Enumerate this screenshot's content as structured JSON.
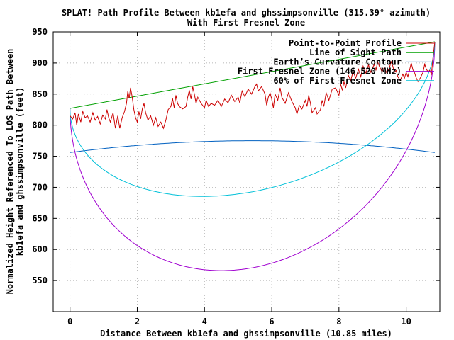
{
  "chart_data": {
    "type": "line",
    "title": [
      "SPLAT! Path Profile Between kb1efa and ghssimpsonville (315.39° azimuth)",
      "With First Fresnel Zone"
    ],
    "xlabel": "Distance Between kb1efa and ghssimpsonville (10.85 miles)",
    "ylabel": [
      "Normalized Height Referenced To LOS Path Between",
      "kb1efa and ghssimpsonville (feet)"
    ],
    "xlim": [
      -0.5,
      11.0
    ],
    "ylim": [
      500,
      950
    ],
    "x_ticks": [
      0,
      2,
      4,
      6,
      8,
      10
    ],
    "x_tick_labels": [
      "0",
      "2",
      "4",
      "6",
      "8",
      "10"
    ],
    "y_ticks": [
      550,
      600,
      650,
      700,
      750,
      800,
      850,
      900,
      950
    ],
    "y_tick_labels": [
      "550",
      "600",
      "650",
      "700",
      "750",
      "800",
      "850",
      "900",
      "950"
    ],
    "legend_position": "top-right",
    "series": [
      {
        "name": "Point-to-Point Profile",
        "color": "#cc0000",
        "points": [
          [
            0.0,
            815
          ],
          [
            0.08,
            810
          ],
          [
            0.15,
            820
          ],
          [
            0.2,
            800
          ],
          [
            0.25,
            818
          ],
          [
            0.32,
            805
          ],
          [
            0.38,
            822
          ],
          [
            0.45,
            812
          ],
          [
            0.52,
            815
          ],
          [
            0.6,
            805
          ],
          [
            0.68,
            820
          ],
          [
            0.75,
            808
          ],
          [
            0.82,
            814
          ],
          [
            0.9,
            802
          ],
          [
            0.97,
            816
          ],
          [
            1.05,
            810
          ],
          [
            1.1,
            825
          ],
          [
            1.15,
            812
          ],
          [
            1.2,
            805
          ],
          [
            1.28,
            820
          ],
          [
            1.35,
            795
          ],
          [
            1.42,
            815
          ],
          [
            1.48,
            795
          ],
          [
            1.55,
            812
          ],
          [
            1.62,
            822
          ],
          [
            1.68,
            835
          ],
          [
            1.72,
            855
          ],
          [
            1.76,
            843
          ],
          [
            1.8,
            860
          ],
          [
            1.85,
            845
          ],
          [
            1.9,
            825
          ],
          [
            1.95,
            812
          ],
          [
            2.0,
            805
          ],
          [
            2.05,
            822
          ],
          [
            2.1,
            810
          ],
          [
            2.15,
            826
          ],
          [
            2.2,
            835
          ],
          [
            2.25,
            820
          ],
          [
            2.32,
            808
          ],
          [
            2.4,
            815
          ],
          [
            2.48,
            800
          ],
          [
            2.55,
            812
          ],
          [
            2.62,
            798
          ],
          [
            2.7,
            805
          ],
          [
            2.78,
            795
          ],
          [
            2.85,
            808
          ],
          [
            2.92,
            825
          ],
          [
            3.0,
            830
          ],
          [
            3.05,
            843
          ],
          [
            3.1,
            828
          ],
          [
            3.15,
            848
          ],
          [
            3.2,
            835
          ],
          [
            3.25,
            830
          ],
          [
            3.35,
            826
          ],
          [
            3.45,
            830
          ],
          [
            3.5,
            845
          ],
          [
            3.55,
            856
          ],
          [
            3.6,
            842
          ],
          [
            3.65,
            862
          ],
          [
            3.7,
            850
          ],
          [
            3.75,
            835
          ],
          [
            3.8,
            845
          ],
          [
            3.9,
            835
          ],
          [
            4.0,
            828
          ],
          [
            4.05,
            840
          ],
          [
            4.12,
            830
          ],
          [
            4.2,
            835
          ],
          [
            4.3,
            832
          ],
          [
            4.4,
            840
          ],
          [
            4.5,
            830
          ],
          [
            4.6,
            842
          ],
          [
            4.7,
            836
          ],
          [
            4.8,
            848
          ],
          [
            4.9,
            838
          ],
          [
            5.0,
            845
          ],
          [
            5.05,
            836
          ],
          [
            5.12,
            855
          ],
          [
            5.2,
            846
          ],
          [
            5.3,
            858
          ],
          [
            5.4,
            850
          ],
          [
            5.5,
            862
          ],
          [
            5.55,
            866
          ],
          [
            5.6,
            855
          ],
          [
            5.7,
            862
          ],
          [
            5.8,
            850
          ],
          [
            5.85,
            832
          ],
          [
            5.9,
            845
          ],
          [
            5.95,
            852
          ],
          [
            6.0,
            842
          ],
          [
            6.05,
            828
          ],
          [
            6.1,
            850
          ],
          [
            6.18,
            840
          ],
          [
            6.25,
            860
          ],
          [
            6.3,
            845
          ],
          [
            6.4,
            835
          ],
          [
            6.5,
            852
          ],
          [
            6.6,
            838
          ],
          [
            6.7,
            828
          ],
          [
            6.75,
            818
          ],
          [
            6.82,
            832
          ],
          [
            6.9,
            826
          ],
          [
            7.0,
            840
          ],
          [
            7.05,
            830
          ],
          [
            7.1,
            848
          ],
          [
            7.15,
            836
          ],
          [
            7.2,
            820
          ],
          [
            7.3,
            828
          ],
          [
            7.35,
            818
          ],
          [
            7.45,
            825
          ],
          [
            7.5,
            840
          ],
          [
            7.55,
            830
          ],
          [
            7.62,
            852
          ],
          [
            7.7,
            840
          ],
          [
            7.8,
            858
          ],
          [
            7.9,
            860
          ],
          [
            8.0,
            848
          ],
          [
            8.05,
            866
          ],
          [
            8.1,
            856
          ],
          [
            8.15,
            870
          ],
          [
            8.2,
            860
          ],
          [
            8.28,
            880
          ],
          [
            8.35,
            872
          ],
          [
            8.42,
            886
          ],
          [
            8.5,
            876
          ],
          [
            8.58,
            890
          ],
          [
            8.65,
            878
          ],
          [
            8.72,
            895
          ],
          [
            8.8,
            884
          ],
          [
            8.88,
            897
          ],
          [
            8.95,
            885
          ],
          [
            9.0,
            892
          ],
          [
            9.05,
            898
          ],
          [
            9.1,
            888
          ],
          [
            9.15,
            902
          ],
          [
            9.2,
            895
          ],
          [
            9.28,
            886
          ],
          [
            9.35,
            893
          ],
          [
            9.42,
            884
          ],
          [
            9.5,
            892
          ],
          [
            9.55,
            902
          ],
          [
            9.6,
            895
          ],
          [
            9.65,
            885
          ],
          [
            9.7,
            888
          ],
          [
            9.75,
            878
          ],
          [
            9.82,
            872
          ],
          [
            9.9,
            882
          ],
          [
            9.95,
            876
          ],
          [
            10.0,
            885
          ],
          [
            10.05,
            878
          ],
          [
            10.1,
            888
          ],
          [
            10.15,
            900
          ],
          [
            10.2,
            889
          ],
          [
            10.25,
            884
          ],
          [
            10.3,
            876
          ],
          [
            10.35,
            870
          ],
          [
            10.42,
            876
          ],
          [
            10.5,
            885
          ],
          [
            10.55,
            898
          ],
          [
            10.6,
            890
          ],
          [
            10.65,
            886
          ],
          [
            10.7,
            888
          ],
          [
            10.75,
            882
          ],
          [
            10.8,
            910
          ],
          [
            10.85,
            933
          ]
        ]
      },
      {
        "name": "Line of Sight Path",
        "color": "#00a000",
        "points": [
          [
            0.0,
            827
          ],
          [
            10.85,
            934
          ]
        ]
      },
      {
        "name": "Earth’s Curvature Contour",
        "color": "#0060c0",
        "curve": "parabola",
        "points": [
          [
            0.0,
            756
          ],
          [
            5.425,
            775
          ],
          [
            10.85,
            756
          ]
        ]
      },
      {
        "name": "First Fresnel Zone (146.520 MHz)",
        "color": "#a000d0",
        "curve": "fresnel",
        "points": [
          [
            0.0,
            827
          ],
          [
            4.58,
            566
          ],
          [
            10.85,
            934
          ]
        ]
      },
      {
        "name": "60% of First Fresnel Zone",
        "color": "#00c0d8",
        "curve": "fresnel",
        "points": [
          [
            0.0,
            827
          ],
          [
            4.34,
            686
          ],
          [
            10.85,
            934
          ]
        ]
      }
    ]
  }
}
